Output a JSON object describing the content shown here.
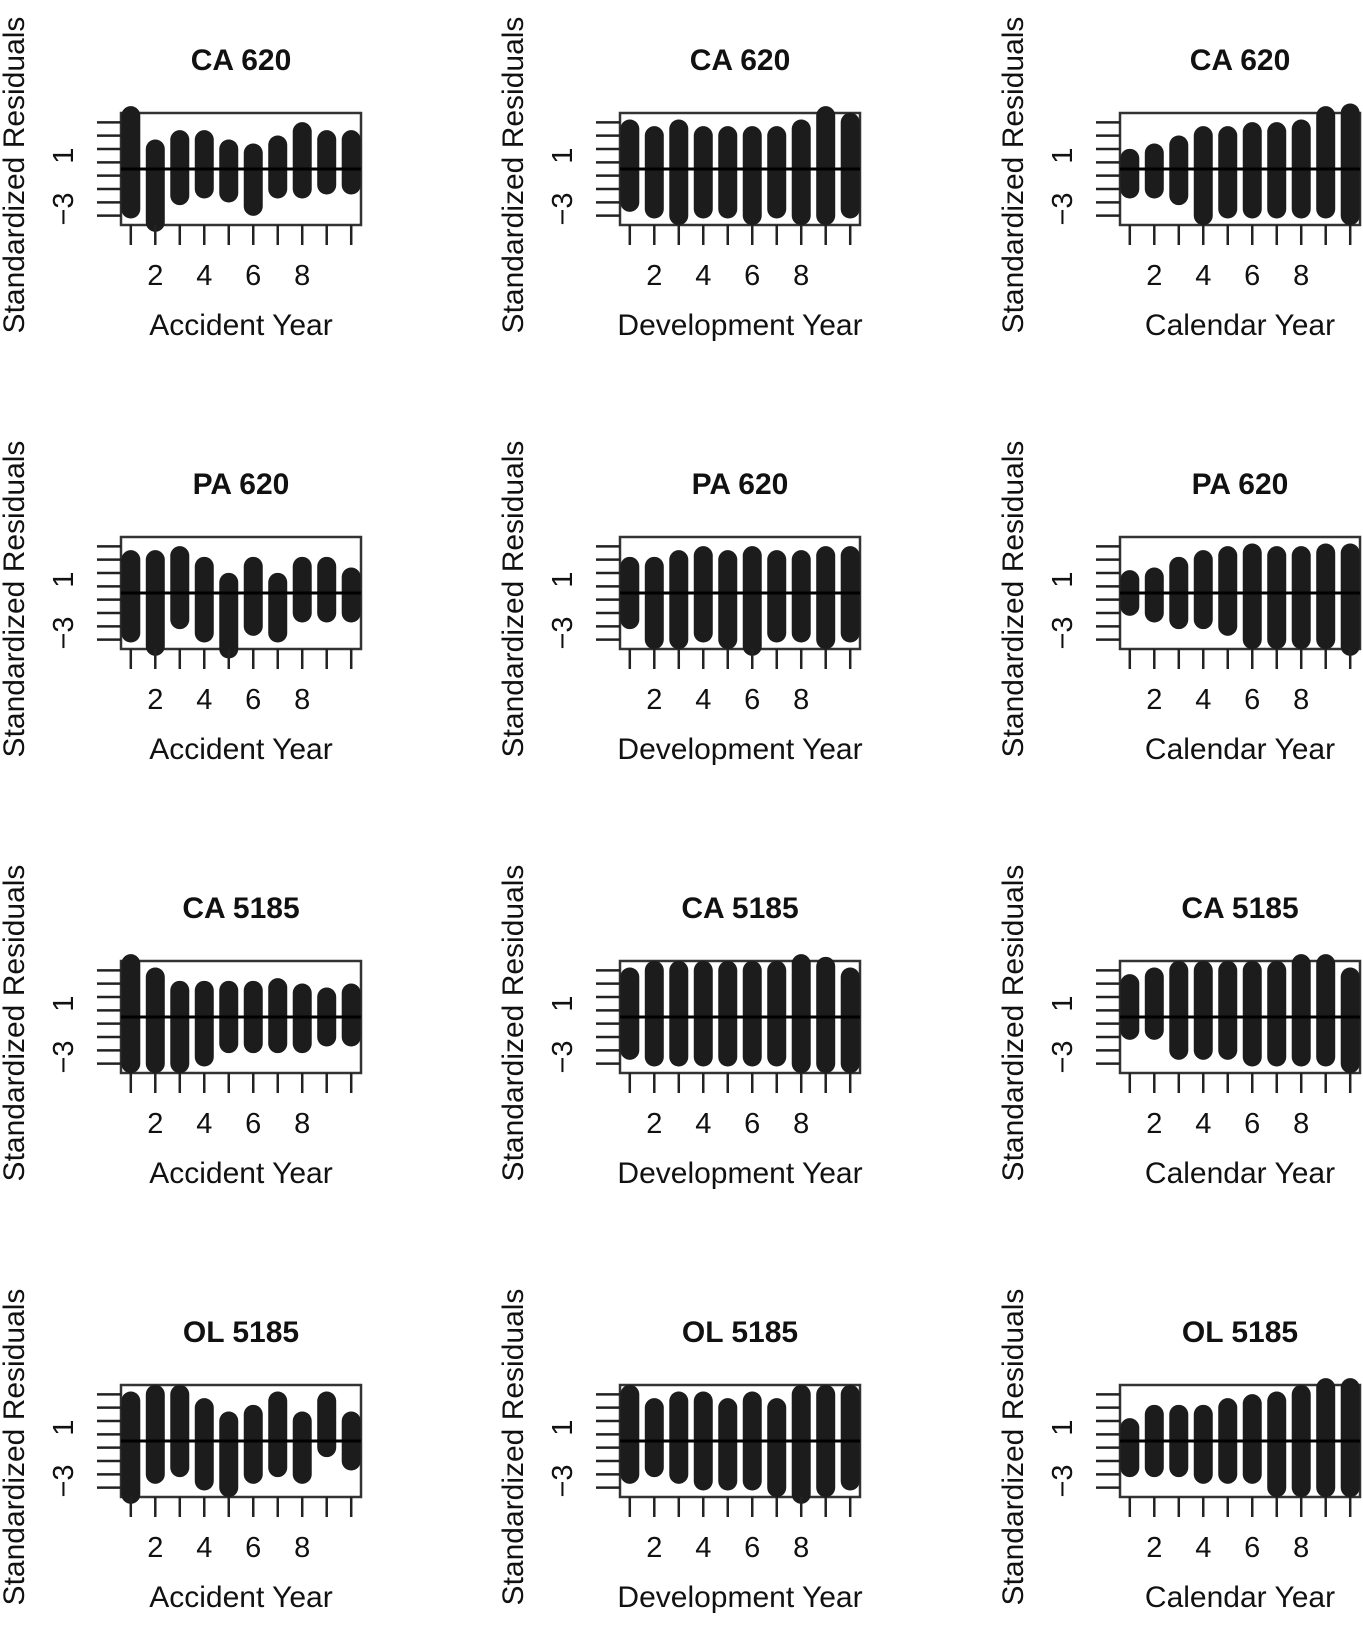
{
  "colors": {
    "residual": "#1c1c1c",
    "axis": "#222222",
    "zero_line": "#000000",
    "frame": "#333333"
  },
  "axes": {
    "ylabel": "Standardized Residuals",
    "x_ticks": [
      "2",
      "4",
      "6",
      "8"
    ],
    "y_ticks": [
      "1",
      "−3"
    ],
    "ylim": [
      -4.2,
      4.2
    ],
    "xlim": [
      0.6,
      10.4
    ]
  },
  "chart_data": [
    {
      "type": "scatter",
      "title": "CA 620",
      "xlabel": "Accident Year",
      "x": [
        1,
        2,
        3,
        4,
        5,
        6,
        7,
        8,
        9,
        10
      ],
      "ranges": [
        [
          -3.0,
          4.0
        ],
        [
          -4.0,
          1.5
        ],
        [
          -2.0,
          2.2
        ],
        [
          -1.5,
          2.2
        ],
        [
          -1.8,
          1.5
        ],
        [
          -2.8,
          1.2
        ],
        [
          -1.5,
          1.8
        ],
        [
          -1.5,
          2.8
        ],
        [
          -1.2,
          2.2
        ],
        [
          -1.2,
          2.2
        ]
      ]
    },
    {
      "type": "scatter",
      "title": "CA 620",
      "xlabel": "Development Year",
      "x": [
        1,
        2,
        3,
        4,
        5,
        6,
        7,
        8,
        9,
        10
      ],
      "ranges": [
        [
          -2.5,
          3.0
        ],
        [
          -3.0,
          2.5
        ],
        [
          -3.5,
          3.0
        ],
        [
          -3.0,
          2.5
        ],
        [
          -3.0,
          2.5
        ],
        [
          -3.5,
          2.5
        ],
        [
          -3.0,
          2.5
        ],
        [
          -3.5,
          3.0
        ],
        [
          -3.5,
          4.0
        ],
        [
          -3.0,
          3.5
        ]
      ]
    },
    {
      "type": "scatter",
      "title": "CA 620",
      "xlabel": "Calendar Year",
      "x": [
        1,
        2,
        3,
        4,
        5,
        6,
        7,
        8,
        9,
        10
      ],
      "ranges": [
        [
          -1.5,
          0.8
        ],
        [
          -1.5,
          1.2
        ],
        [
          -2.0,
          1.8
        ],
        [
          -3.5,
          2.5
        ],
        [
          -3.0,
          2.5
        ],
        [
          -3.0,
          2.8
        ],
        [
          -3.0,
          2.8
        ],
        [
          -3.0,
          3.0
        ],
        [
          -3.0,
          4.0
        ],
        [
          -3.5,
          4.2
        ]
      ]
    },
    {
      "type": "scatter",
      "title": "PA 620",
      "xlabel": "Accident Year",
      "x": [
        1,
        2,
        3,
        4,
        5,
        6,
        7,
        8,
        9,
        10
      ],
      "ranges": [
        [
          -3.0,
          2.5
        ],
        [
          -4.0,
          2.5
        ],
        [
          -2.0,
          2.8
        ],
        [
          -3.0,
          2.0
        ],
        [
          -4.2,
          0.8
        ],
        [
          -2.5,
          2.0
        ],
        [
          -3.0,
          0.8
        ],
        [
          -1.5,
          2.0
        ],
        [
          -1.5,
          2.0
        ],
        [
          -1.5,
          1.2
        ]
      ]
    },
    {
      "type": "scatter",
      "title": "PA 620",
      "xlabel": "Development Year",
      "x": [
        1,
        2,
        3,
        4,
        5,
        6,
        7,
        8,
        9,
        10
      ],
      "ranges": [
        [
          -2.0,
          2.0
        ],
        [
          -3.5,
          2.0
        ],
        [
          -3.5,
          2.5
        ],
        [
          -3.0,
          2.8
        ],
        [
          -3.5,
          2.5
        ],
        [
          -4.0,
          2.8
        ],
        [
          -3.0,
          2.5
        ],
        [
          -3.0,
          2.5
        ],
        [
          -3.5,
          2.8
        ],
        [
          -3.0,
          2.8
        ]
      ]
    },
    {
      "type": "scatter",
      "title": "PA 620",
      "xlabel": "Calendar Year",
      "x": [
        1,
        2,
        3,
        4,
        5,
        6,
        7,
        8,
        9,
        10
      ],
      "ranges": [
        [
          -1.0,
          1.0
        ],
        [
          -1.5,
          1.2
        ],
        [
          -2.0,
          2.0
        ],
        [
          -2.0,
          2.5
        ],
        [
          -2.5,
          2.8
        ],
        [
          -3.5,
          3.0
        ],
        [
          -3.5,
          2.8
        ],
        [
          -3.5,
          2.8
        ],
        [
          -3.5,
          3.0
        ],
        [
          -4.0,
          3.0
        ]
      ]
    },
    {
      "type": "scatter",
      "title": "CA 5185",
      "xlabel": "Accident Year",
      "x": [
        1,
        2,
        3,
        4,
        5,
        6,
        7,
        8,
        9,
        10
      ],
      "ranges": [
        [
          -3.5,
          4.0
        ],
        [
          -3.5,
          3.0
        ],
        [
          -3.5,
          2.0
        ],
        [
          -3.0,
          2.0
        ],
        [
          -2.0,
          2.0
        ],
        [
          -2.0,
          2.0
        ],
        [
          -2.0,
          2.2
        ],
        [
          -2.0,
          1.8
        ],
        [
          -1.5,
          1.5
        ],
        [
          -1.5,
          1.8
        ]
      ]
    },
    {
      "type": "scatter",
      "title": "CA 5185",
      "xlabel": "Development Year",
      "x": [
        1,
        2,
        3,
        4,
        5,
        6,
        7,
        8,
        9,
        10
      ],
      "ranges": [
        [
          -2.5,
          3.0
        ],
        [
          -3.0,
          3.5
        ],
        [
          -3.0,
          3.5
        ],
        [
          -3.0,
          3.5
        ],
        [
          -3.0,
          3.5
        ],
        [
          -3.0,
          3.5
        ],
        [
          -3.0,
          3.5
        ],
        [
          -3.5,
          4.0
        ],
        [
          -3.5,
          3.8
        ],
        [
          -3.5,
          3.0
        ]
      ]
    },
    {
      "type": "scatter",
      "title": "CA 5185",
      "xlabel": "Calendar Year",
      "x": [
        1,
        2,
        3,
        4,
        5,
        6,
        7,
        8,
        9,
        10
      ],
      "ranges": [
        [
          -1.0,
          2.5
        ],
        [
          -1.0,
          3.0
        ],
        [
          -2.5,
          3.5
        ],
        [
          -2.5,
          3.5
        ],
        [
          -2.5,
          3.5
        ],
        [
          -3.0,
          3.5
        ],
        [
          -3.0,
          3.5
        ],
        [
          -3.0,
          4.0
        ],
        [
          -3.0,
          4.0
        ],
        [
          -3.5,
          3.0
        ]
      ]
    },
    {
      "type": "scatter",
      "title": "OL 5185",
      "xlabel": "Accident Year",
      "x": [
        1,
        2,
        3,
        4,
        5,
        6,
        7,
        8,
        9,
        10
      ],
      "ranges": [
        [
          -4.0,
          3.0
        ],
        [
          -2.5,
          3.5
        ],
        [
          -2.0,
          3.5
        ],
        [
          -3.0,
          2.5
        ],
        [
          -3.5,
          1.5
        ],
        [
          -2.5,
          2.0
        ],
        [
          -2.0,
          3.0
        ],
        [
          -2.5,
          1.5
        ],
        [
          -0.5,
          3.0
        ],
        [
          -1.5,
          1.5
        ]
      ]
    },
    {
      "type": "scatter",
      "title": "OL 5185",
      "xlabel": "Development Year",
      "x": [
        1,
        2,
        3,
        4,
        5,
        6,
        7,
        8,
        9,
        10
      ],
      "ranges": [
        [
          -2.5,
          3.5
        ],
        [
          -2.0,
          2.5
        ],
        [
          -2.5,
          3.0
        ],
        [
          -3.0,
          3.0
        ],
        [
          -3.0,
          2.5
        ],
        [
          -3.0,
          3.0
        ],
        [
          -3.5,
          2.5
        ],
        [
          -4.0,
          3.5
        ],
        [
          -3.5,
          3.5
        ],
        [
          -3.0,
          3.5
        ]
      ]
    },
    {
      "type": "scatter",
      "title": "OL 5185",
      "xlabel": "Calendar Year",
      "x": [
        1,
        2,
        3,
        4,
        5,
        6,
        7,
        8,
        9,
        10
      ],
      "ranges": [
        [
          -2.0,
          1.0
        ],
        [
          -2.0,
          2.0
        ],
        [
          -2.0,
          2.0
        ],
        [
          -2.5,
          2.0
        ],
        [
          -2.5,
          2.5
        ],
        [
          -2.5,
          2.8
        ],
        [
          -3.5,
          3.0
        ],
        [
          -3.5,
          3.5
        ],
        [
          -3.5,
          4.0
        ],
        [
          -3.5,
          4.0
        ]
      ]
    }
  ]
}
